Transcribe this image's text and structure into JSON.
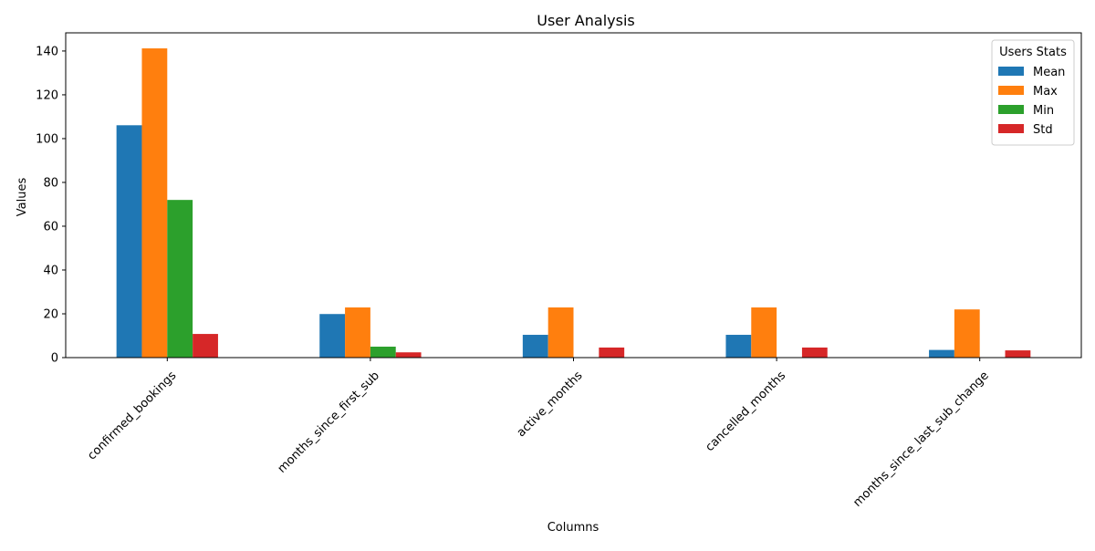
{
  "chart_data": {
    "type": "bar",
    "title": "User Analysis",
    "xlabel": "Columns",
    "ylabel": "Values",
    "categories": [
      "confirmed_bookings",
      "months_since_first_sub",
      "active_months",
      "cancelled_months",
      "months_since_last_sub_change"
    ],
    "series": [
      {
        "name": "Mean",
        "color": "#1f77b4",
        "values": [
          106.1,
          19.9,
          10.4,
          10.4,
          3.5
        ]
      },
      {
        "name": "Max",
        "color": "#ff7f0e",
        "values": [
          141.2,
          22.9,
          22.9,
          22.9,
          22.0
        ]
      },
      {
        "name": "Min",
        "color": "#2ca02c",
        "values": [
          72.0,
          5.0,
          0,
          0,
          0
        ]
      },
      {
        "name": "Std",
        "color": "#d62728",
        "values": [
          10.8,
          2.4,
          4.6,
          4.6,
          3.3
        ]
      }
    ],
    "ylim": [
      0,
      148.3
    ],
    "yticks": [
      0,
      20,
      40,
      60,
      80,
      100,
      120,
      140
    ],
    "grid": false,
    "legend": {
      "title": "Users Stats",
      "position": "top-right"
    }
  }
}
